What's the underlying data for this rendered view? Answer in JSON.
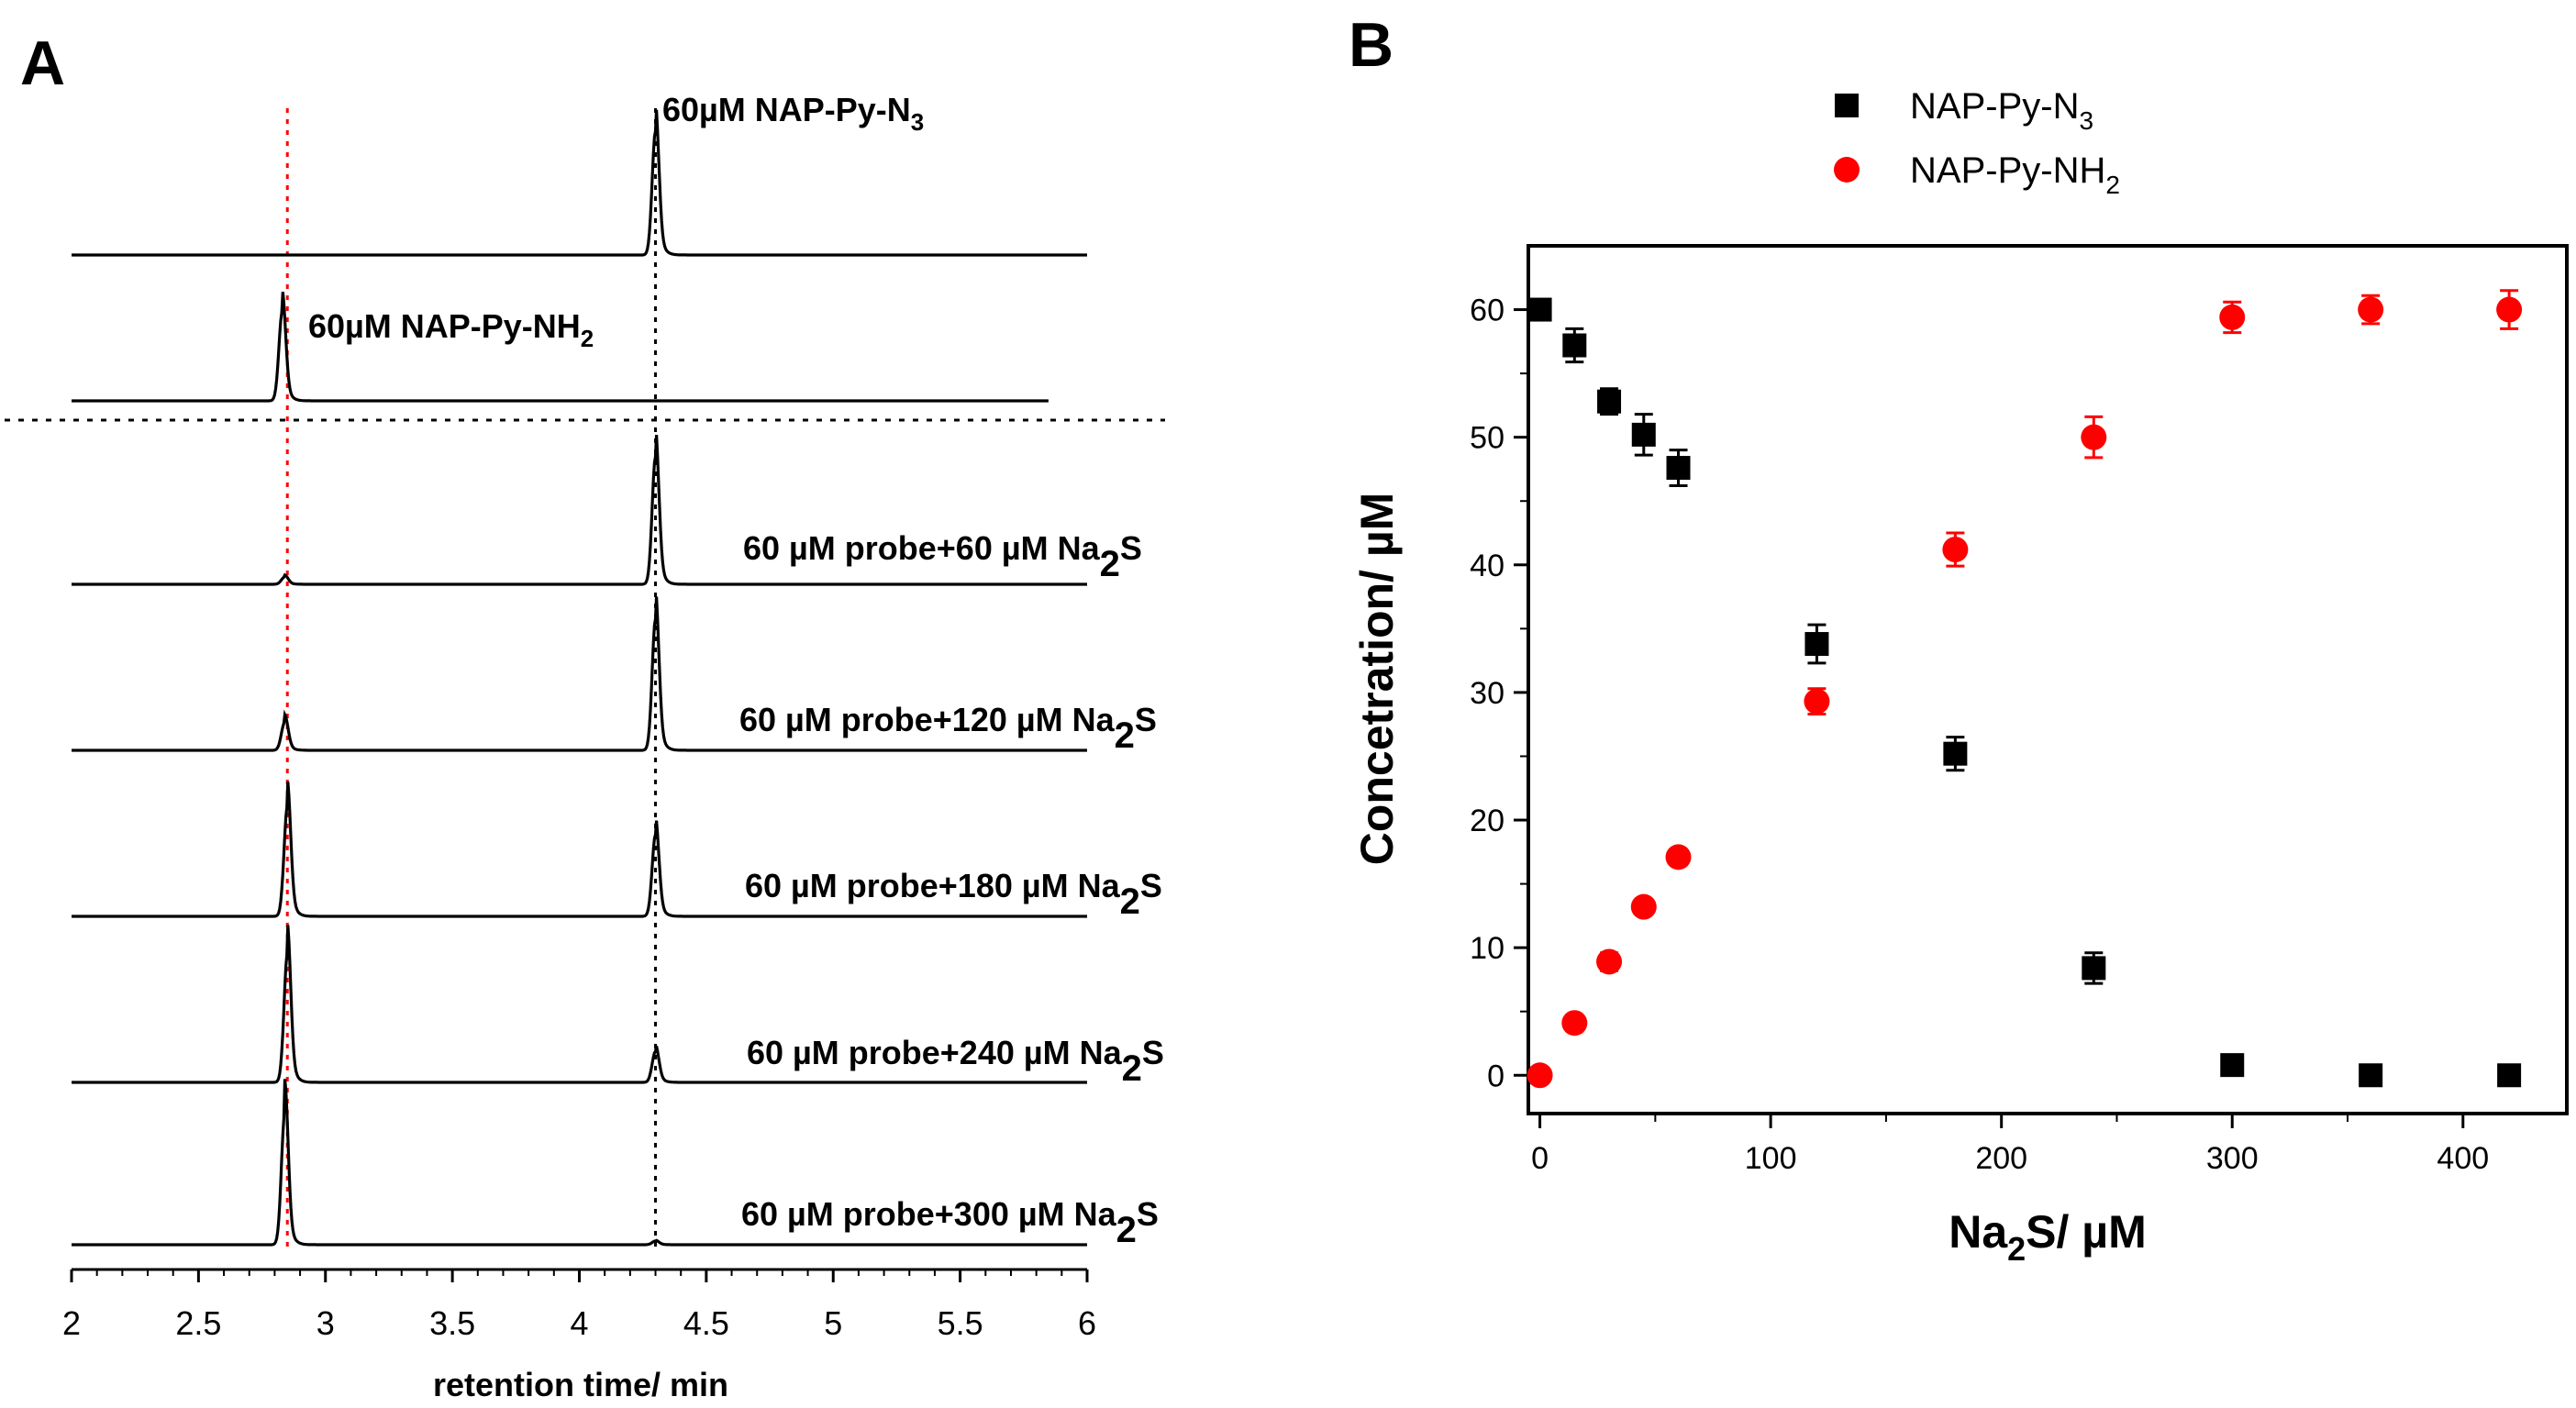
{
  "colors": {
    "probe": "#000000",
    "product": "#ff0000",
    "axis": "#000000"
  },
  "chart_data": [
    {
      "panel_label": "A",
      "type": "line",
      "title": "",
      "xlabel": "retention time/ min",
      "ylabel": "",
      "xlim": [
        2,
        6
      ],
      "x_ticks": [
        "2",
        "2.5",
        "3",
        "3.5",
        "4",
        "4.5",
        "5",
        "5.5",
        "6"
      ],
      "reference_lines": [
        {
          "x": 2.85,
          "style": "dotted",
          "color": "#ff0000"
        },
        {
          "x": 4.3,
          "style": "dotted",
          "color": "#000000"
        }
      ],
      "divider": "dotted horizontal line between standards and samples",
      "series": [
        {
          "name": "60µM NAP-Py-N3",
          "label": "60µM NAP-Py-N",
          "label_sub": "3",
          "label_tail": "",
          "x_end": 6,
          "peaks": [
            {
              "x": 4.3,
              "height": 1.0
            }
          ]
        },
        {
          "name": "60µM NAP-Py-NH2",
          "label": "60µM NAP-Py-NH",
          "label_sub": "2",
          "label_tail": "",
          "x_end": 5.85,
          "peaks": [
            {
              "x": 2.83,
              "height": 0.72
            }
          ]
        },
        {
          "name": "60 µM probe+60 µM Na2S",
          "label": "60 µM probe+60 µM Na",
          "label_sub": "2",
          "label_tail": "S",
          "x_end": 6,
          "peaks": [
            {
              "x": 2.84,
              "height": 0.06
            },
            {
              "x": 4.3,
              "height": 1.03
            }
          ]
        },
        {
          "name": "60 µM probe+120 µM Na2S",
          "label": "60 µM probe+120 µM Na",
          "label_sub": "2",
          "label_tail": "S",
          "x_end": 6,
          "peaks": [
            {
              "x": 2.84,
              "height": 0.23
            },
            {
              "x": 4.3,
              "height": 1.06
            }
          ]
        },
        {
          "name": "60 µM probe+180 µM Na2S",
          "label": "60 µM probe+180 µM Na",
          "label_sub": "2",
          "label_tail": "S",
          "x_end": 6,
          "peaks": [
            {
              "x": 2.85,
              "height": 0.89
            },
            {
              "x": 4.3,
              "height": 0.66
            }
          ]
        },
        {
          "name": "60 µM probe+240 µM Na2S",
          "label": "60 µM probe+240 µM Na",
          "label_sub": "2",
          "label_tail": "S",
          "x_end": 6,
          "peaks": [
            {
              "x": 2.85,
              "height": 1.04
            },
            {
              "x": 4.3,
              "height": 0.25
            }
          ]
        },
        {
          "name": "60 µM probe+300 µM Na2S",
          "label": "60 µM probe+300 µM Na",
          "label_sub": "2",
          "label_tail": "S",
          "x_end": 6,
          "peaks": [
            {
              "x": 2.84,
              "height": 1.07
            },
            {
              "x": 4.3,
              "height": 0.03
            }
          ]
        }
      ]
    },
    {
      "panel_label": "B",
      "type": "scatter",
      "title": "",
      "xlabel": "Na",
      "xlabel_sub": "2",
      "xlabel_tail": "S/ µM",
      "ylabel": "Concetration/ µM",
      "xlim": [
        -5,
        445
      ],
      "ylim": [
        -3,
        65
      ],
      "x_ticks": [
        0,
        100,
        200,
        300,
        400
      ],
      "y_ticks": [
        0,
        10,
        20,
        30,
        40,
        50,
        60
      ],
      "legend_position": "top-center",
      "series": [
        {
          "name": "NAP-Py-N3",
          "label": "NAP-Py-N",
          "label_sub": "3",
          "marker": "square",
          "color": "#000000",
          "points": [
            {
              "x": 0,
              "y": 60,
              "err": 0
            },
            {
              "x": 15,
              "y": 57.2,
              "err": 1.3
            },
            {
              "x": 30,
              "y": 52.8,
              "err": 1.0
            },
            {
              "x": 45,
              "y": 50.2,
              "err": 1.6
            },
            {
              "x": 60,
              "y": 47.6,
              "err": 1.4
            },
            {
              "x": 120,
              "y": 33.8,
              "err": 1.5
            },
            {
              "x": 180,
              "y": 25.2,
              "err": 1.3
            },
            {
              "x": 240,
              "y": 8.4,
              "err": 1.2
            },
            {
              "x": 300,
              "y": 0.8,
              "err": 0
            },
            {
              "x": 360,
              "y": 0,
              "err": 0
            },
            {
              "x": 420,
              "y": 0,
              "err": 0
            }
          ]
        },
        {
          "name": "NAP-Py-NH2",
          "label": "NAP-Py-NH",
          "label_sub": "2",
          "marker": "circle",
          "color": "#ff0000",
          "points": [
            {
              "x": 0,
              "y": 0,
              "err": 0
            },
            {
              "x": 15,
              "y": 4.1,
              "err": 0.6
            },
            {
              "x": 30,
              "y": 8.9,
              "err": 0.7
            },
            {
              "x": 45,
              "y": 13.2,
              "err": 0.5
            },
            {
              "x": 60,
              "y": 17.1,
              "err": 0.6
            },
            {
              "x": 120,
              "y": 29.3,
              "err": 1.0
            },
            {
              "x": 180,
              "y": 41.2,
              "err": 1.3
            },
            {
              "x": 240,
              "y": 50.0,
              "err": 1.6
            },
            {
              "x": 300,
              "y": 59.4,
              "err": 1.2
            },
            {
              "x": 360,
              "y": 60.0,
              "err": 1.1
            },
            {
              "x": 420,
              "y": 60.0,
              "err": 1.5
            }
          ]
        }
      ]
    }
  ]
}
